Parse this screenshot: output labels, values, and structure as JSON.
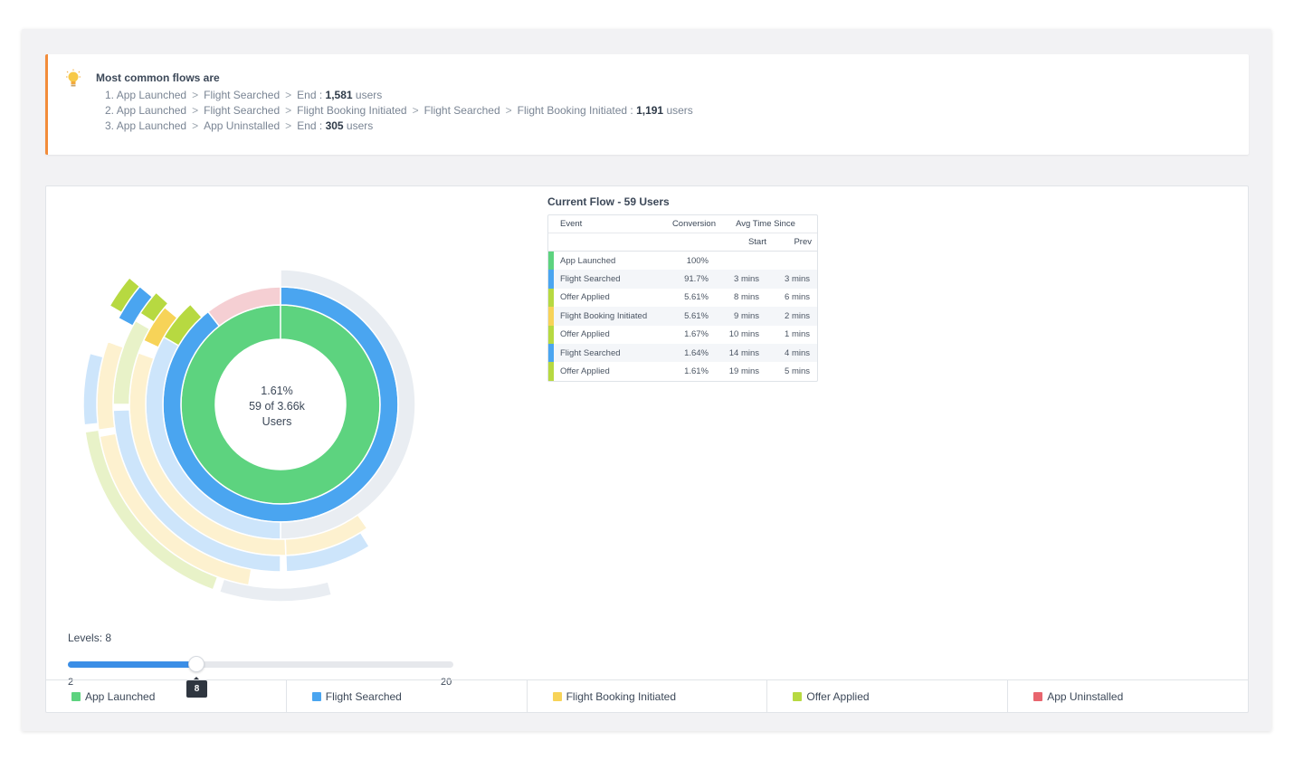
{
  "insight": {
    "title": "Most common flows are",
    "flows": [
      {
        "prefix": "1.",
        "steps": [
          "App Launched",
          "Flight Searched",
          "End"
        ],
        "count": "1,581",
        "unit": "users"
      },
      {
        "prefix": "2.",
        "steps": [
          "App Launched",
          "Flight Searched",
          "Flight Booking Initiated",
          "Flight Searched",
          "Flight Booking Initiated"
        ],
        "count": "1,191",
        "unit": "users"
      },
      {
        "prefix": "3.",
        "steps": [
          "App Launched",
          "App Uninstalled",
          "End"
        ],
        "count": "305",
        "unit": "users"
      }
    ]
  },
  "center": {
    "percent": "1.61%",
    "count": "59 of 3.66k",
    "label": "Users"
  },
  "flow_table": {
    "title": "Current Flow - 59 Users",
    "headers": {
      "event": "Event",
      "conversion": "Conversion",
      "avg": "Avg Time Since",
      "start": "Start",
      "prev": "Prev"
    },
    "rows": [
      {
        "event": "App Launched",
        "conversion": "100%",
        "start": "",
        "prev": "",
        "color": "#5dd37f"
      },
      {
        "event": "Flight Searched",
        "conversion": "91.7%",
        "start": "3 mins",
        "prev": "3 mins",
        "color": "#4aa5f0"
      },
      {
        "event": "Offer Applied",
        "conversion": "5.61%",
        "start": "8 mins",
        "prev": "6 mins",
        "color": "#b7d941"
      },
      {
        "event": "Flight Booking Initiated",
        "conversion": "5.61%",
        "start": "9 mins",
        "prev": "2 mins",
        "color": "#f7d358"
      },
      {
        "event": "Offer Applied",
        "conversion": "1.67%",
        "start": "10 mins",
        "prev": "1 mins",
        "color": "#b7d941"
      },
      {
        "event": "Flight Searched",
        "conversion": "1.64%",
        "start": "14 mins",
        "prev": "4 mins",
        "color": "#4aa5f0"
      },
      {
        "event": "Offer Applied",
        "conversion": "1.61%",
        "start": "19 mins",
        "prev": "5 mins",
        "color": "#b7d941"
      }
    ]
  },
  "levels": {
    "label": "Levels: 8",
    "min": "2",
    "max": "20",
    "value": 8,
    "min_value": 2,
    "max_value": 20,
    "tooltip": "8"
  },
  "legend": [
    {
      "label": "App Launched",
      "color": "#5dd37f"
    },
    {
      "label": "Flight Searched",
      "color": "#4aa5f0"
    },
    {
      "label": "Flight Booking Initiated",
      "color": "#f7d358"
    },
    {
      "label": "Offer Applied",
      "color": "#b7d941"
    },
    {
      "label": "App Uninstalled",
      "color": "#e8656e"
    }
  ],
  "colors": {
    "accent": "#f28c3a",
    "green": "#5dd37f",
    "blue": "#4aa5f0",
    "yellow": "#f7d358",
    "lime": "#b7d941",
    "pink": "#f5cfd3",
    "grey_ring": "#e9edf2",
    "light_blue": "#cde5fb",
    "light_yellow": "#fdf1cf",
    "light_lime": "#e8f2c8",
    "slider": "#3b8ee6"
  }
}
